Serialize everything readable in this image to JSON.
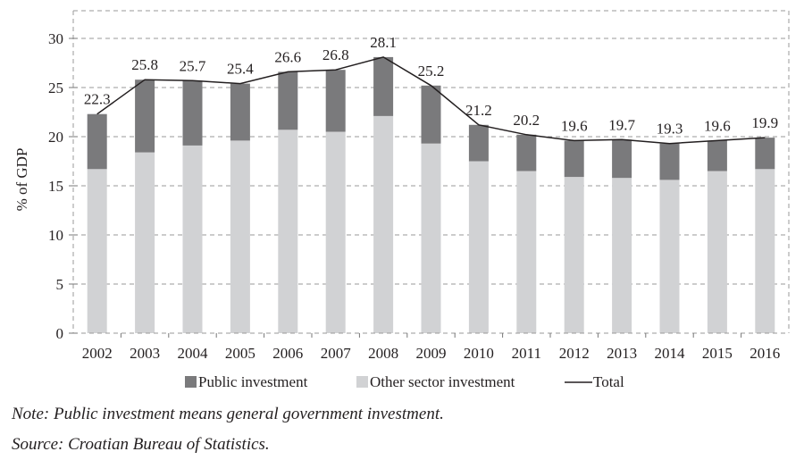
{
  "chart_data": {
    "type": "bar",
    "stacked": true,
    "title": "",
    "xlabel": "",
    "ylabel": "% of GDP",
    "ylim": [
      0,
      30
    ],
    "yticks": [
      0,
      5,
      10,
      15,
      20,
      25,
      30
    ],
    "grid": true,
    "categories": [
      "2002",
      "2003",
      "2004",
      "2005",
      "2006",
      "2007",
      "2008",
      "2009",
      "2010",
      "2011",
      "2012",
      "2013",
      "2014",
      "2015",
      "2016"
    ],
    "series": [
      {
        "name": "Other sector investment",
        "kind": "bar",
        "color": "#d1d2d4",
        "values": [
          16.7,
          18.4,
          19.1,
          19.6,
          20.7,
          20.5,
          22.1,
          19.3,
          17.5,
          16.5,
          15.9,
          15.8,
          15.6,
          16.5,
          16.7
        ]
      },
      {
        "name": "Public investment",
        "kind": "bar",
        "color": "#7a7a7c",
        "values": [
          5.6,
          7.4,
          6.6,
          5.8,
          5.9,
          6.3,
          6.0,
          5.9,
          3.7,
          3.7,
          3.7,
          3.9,
          3.7,
          3.1,
          3.2
        ]
      },
      {
        "name": "Total",
        "kind": "line",
        "color": "#231f20",
        "values": [
          22.3,
          25.8,
          25.7,
          25.4,
          26.6,
          26.8,
          28.1,
          25.2,
          21.2,
          20.2,
          19.6,
          19.7,
          19.3,
          19.6,
          19.9
        ]
      }
    ],
    "data_labels": [
      "22.3",
      "25.8",
      "25.7",
      "25.4",
      "26.6",
      "26.8",
      "28.1",
      "25.2",
      "21.2",
      "20.2",
      "19.6",
      "19.7",
      "19.3",
      "19.6",
      "19.9"
    ],
    "legend": {
      "placement": "bottom",
      "entries": [
        {
          "label": "Public investment",
          "symbol": "square",
          "color": "#7a7a7c"
        },
        {
          "label": "Other sector investment",
          "symbol": "square",
          "color": "#d1d2d4"
        },
        {
          "label": "Total",
          "symbol": "line",
          "color": "#231f20"
        }
      ]
    }
  },
  "notes": {
    "note": "Note: Public investment means general government investment.",
    "source": "Source: Croatian Bureau of Statistics."
  }
}
